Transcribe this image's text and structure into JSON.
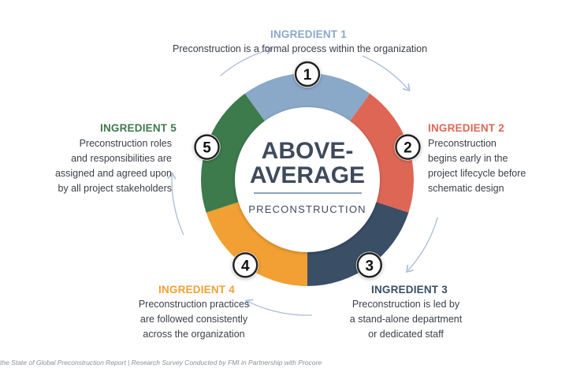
{
  "center": {
    "title_line1": "ABOVE-",
    "title_line2": "AVERAGE",
    "subtitle": "PRECONSTRUCTION"
  },
  "ingredients": [
    {
      "number": "1",
      "title": "INGREDIENT 1",
      "desc_lines": [
        "Preconstruction is a formal process within the organization"
      ],
      "color": "#8aa8c8"
    },
    {
      "number": "2",
      "title": "INGREDIENT 2",
      "desc_lines": [
        "Preconstruction",
        "begins early in the",
        "project lifecycle before",
        "schematic design"
      ],
      "color": "#dd6754"
    },
    {
      "number": "3",
      "title": "INGREDIENT 3",
      "desc_lines": [
        "Preconstruction is led by",
        "a stand-alone department",
        "or dedicated staff"
      ],
      "color": "#3a4e66"
    },
    {
      "number": "4",
      "title": "INGREDIENT 4",
      "desc_lines": [
        "Preconstruction practices",
        "are followed consistently",
        "across the organization"
      ],
      "color": "#f2a033"
    },
    {
      "number": "5",
      "title": "INGREDIENT 5",
      "desc_lines": [
        "Preconstruction roles",
        "and responsibilities are",
        "assigned and agreed upon",
        "by all project stakeholders"
      ],
      "color": "#3d7a4c"
    }
  ],
  "footer": "the State of Global Preconstruction Report | Research Survey Conducted by FMI in Partnership with Procore"
}
